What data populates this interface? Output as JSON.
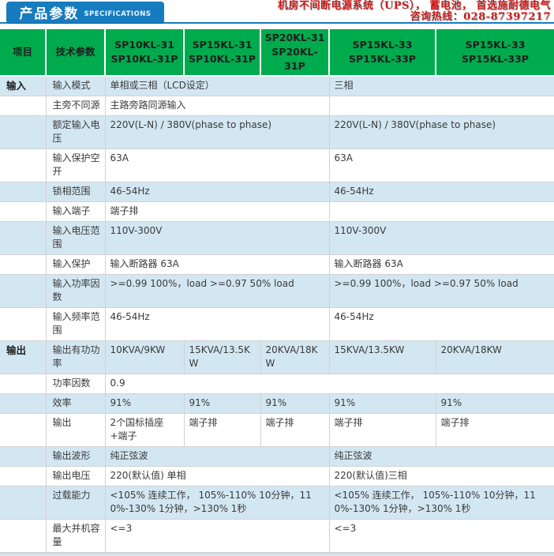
{
  "header": {
    "badge_title": "产品参数",
    "badge_subtitle": "SPECIFICATIONS",
    "promo_line1": "机房不间断电源系统（UPS）， 蓄电池， 首选施耐德电气",
    "promo_line2": "咨询热线：028-87397217"
  },
  "colors": {
    "badge_blue": "#177cbf",
    "header_green": "#00ab4e",
    "stripe_blue": "#d3e7f2",
    "promo_red": "#cf1a1a",
    "border_gray": "#d2d2d2"
  },
  "table": {
    "item_col_header": "项目",
    "param_col_header": "技术参数",
    "model_headers": [
      {
        "line1": "SP10KL-31",
        "line2": "SP10KL-31P"
      },
      {
        "line1": "SP15KL-31",
        "line2": "SP10KL-31P"
      },
      {
        "line1": "SP20KL-31",
        "line2": "SP20KL-31P"
      },
      {
        "line1": "SP15KL-33",
        "line2": "SP15KL-33P"
      },
      {
        "line1": "SP15KL-33",
        "line2": "SP15KL-33P"
      }
    ],
    "rows": [
      {
        "section": "输入",
        "label": "输入模式",
        "cells": [
          {
            "text": "单相或三相（LCD设定）",
            "span": 3
          },
          {
            "text": "三相",
            "span": 2
          }
        ]
      },
      {
        "section": "",
        "label": "主旁不同源",
        "cells": [
          {
            "text": "主路旁路同源输入",
            "span": 3
          },
          {
            "text": "",
            "span": 2
          }
        ]
      },
      {
        "section": "",
        "label": "额定输入电压",
        "cells": [
          {
            "text": "220V(L-N) / 380V(phase to phase)",
            "span": 3
          },
          {
            "text": "220V(L-N) / 380V(phase to phase)",
            "span": 2
          }
        ]
      },
      {
        "section": "",
        "label": "输入保护空开",
        "cells": [
          {
            "text": "63A",
            "span": 3
          },
          {
            "text": "63A",
            "span": 2
          }
        ]
      },
      {
        "section": "",
        "label": "锁相范围",
        "cells": [
          {
            "text": "46-54Hz",
            "span": 3
          },
          {
            "text": "46-54Hz",
            "span": 2
          }
        ]
      },
      {
        "section": "",
        "label": "输入端子",
        "cells": [
          {
            "text": "端子排",
            "span": 3
          },
          {
            "text": "",
            "span": 2
          }
        ]
      },
      {
        "section": "",
        "label": "输入电压范围",
        "cells": [
          {
            "text": "110V-300V",
            "span": 3
          },
          {
            "text": "110V-300V",
            "span": 2
          }
        ]
      },
      {
        "section": "",
        "label": "输入保护",
        "cells": [
          {
            "text": "输入断路器 63A",
            "span": 3
          },
          {
            "text": "输入断路器 63A",
            "span": 2
          }
        ]
      },
      {
        "section": "",
        "label": "输入功率因数",
        "cells": [
          {
            "text": ">=0.99 100%，load  >=0.97 50% load",
            "span": 3
          },
          {
            "text": ">=0.99 100%，load  >=0.97 50% load",
            "span": 2
          }
        ]
      },
      {
        "section": "",
        "label": "输入频率范围",
        "cells": [
          {
            "text": "46-54Hz",
            "span": 3
          },
          {
            "text": "46-54Hz",
            "span": 2
          }
        ]
      },
      {
        "section": "输出",
        "label": "输出有功功率",
        "cells": [
          {
            "text": "10KVA/9KW",
            "span": 1
          },
          {
            "text": "15KVA/13.5KW",
            "span": 1
          },
          {
            "text": "20KVA/18KW",
            "span": 1
          },
          {
            "text": "15KVA/13.5KW",
            "span": 1
          },
          {
            "text": "20KVA/18KW",
            "span": 1
          }
        ]
      },
      {
        "section": "",
        "label": "功率因数",
        "cells": [
          {
            "text": "0.9",
            "span": 5
          }
        ]
      },
      {
        "section": "",
        "label": "效率",
        "cells": [
          {
            "text": "91%",
            "span": 1
          },
          {
            "text": "91%",
            "span": 1
          },
          {
            "text": "91%",
            "span": 1
          },
          {
            "text": "91%",
            "span": 1
          },
          {
            "text": "91%",
            "span": 1
          }
        ]
      },
      {
        "section": "",
        "label": "输出",
        "cells": [
          {
            "text": "2个国标插座+端子",
            "span": 1
          },
          {
            "text": "端子排",
            "span": 1
          },
          {
            "text": "端子排",
            "span": 1
          },
          {
            "text": "端子排",
            "span": 1
          },
          {
            "text": "端子排",
            "span": 1
          }
        ]
      },
      {
        "section": "",
        "label": "输出波形",
        "cells": [
          {
            "text": "纯正弦波",
            "span": 3
          },
          {
            "text": "纯正弦波",
            "span": 2
          }
        ]
      },
      {
        "section": "",
        "label": "输出电压",
        "cells": [
          {
            "text": "220(默认值) 单相",
            "span": 3
          },
          {
            "text": "220(默认值)三相",
            "span": 2
          }
        ]
      },
      {
        "section": "",
        "label": "过载能力",
        "cells": [
          {
            "text": "<105% 连续工作，  105%-110% 10分钟，110%-130% 1分钟，>130% 1秒",
            "span": 3
          },
          {
            "text": "<105% 连续工作，  105%-110% 10分钟，110%-130% 1分钟，>130% 1秒",
            "span": 2
          }
        ]
      },
      {
        "section": "",
        "label": "最大并机容量",
        "cells": [
          {
            "text": "<=3",
            "span": 3
          },
          {
            "text": "<=3",
            "span": 2
          }
        ]
      }
    ]
  }
}
